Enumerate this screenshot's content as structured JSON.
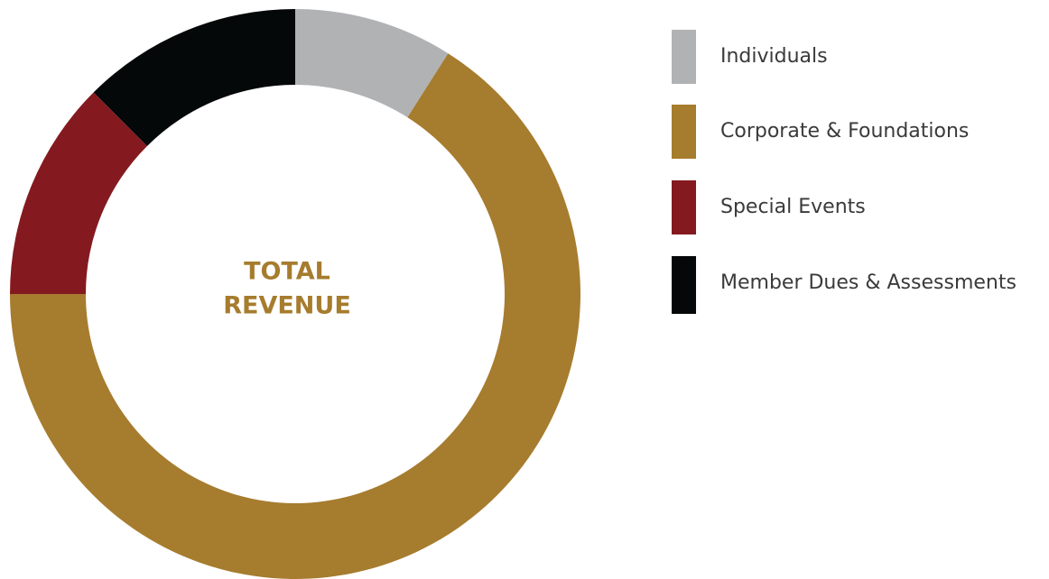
{
  "chart_data": {
    "type": "donut",
    "center_label": [
      "TOTAL",
      "REVENUE"
    ],
    "categories": [
      "Individuals",
      "Corporate & Foundations",
      "Special Events",
      "Member Dues & Assessments"
    ],
    "values": [
      9,
      66,
      12.5,
      12.5
    ],
    "colors": [
      "#b1b2b4",
      "#a67c2e",
      "#841a20",
      "#050808"
    ],
    "legend": "right"
  }
}
